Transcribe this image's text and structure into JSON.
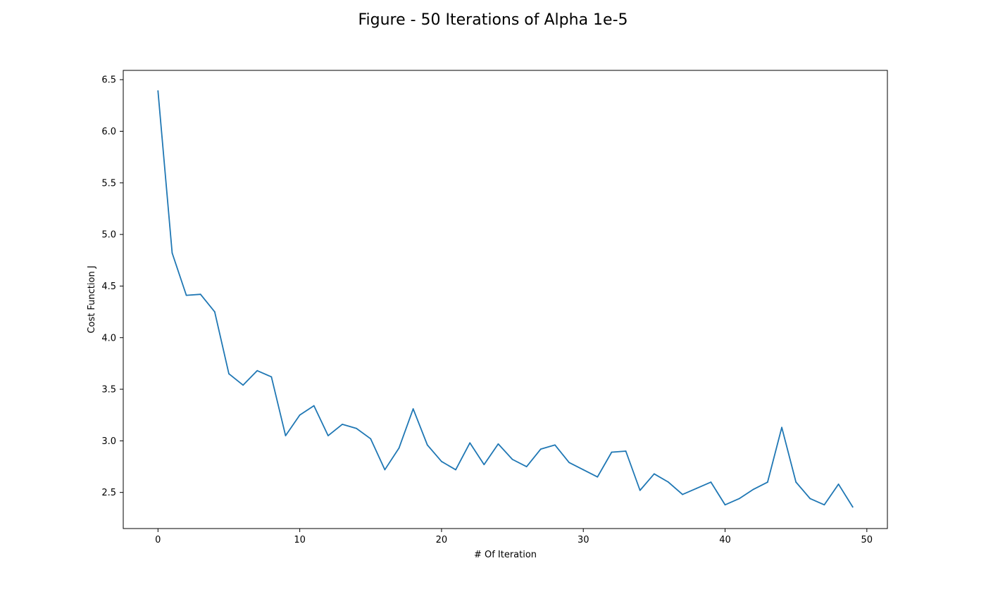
{
  "chart_data": {
    "type": "line",
    "title": "Figure - 50 Iterations of Alpha 1e-5",
    "xlabel": "# Of Iteration",
    "ylabel": "Cost Function J",
    "xlim": [
      -2.45,
      51.45
    ],
    "ylim": [
      2.15,
      6.59
    ],
    "xticks": [
      0,
      10,
      20,
      30,
      40,
      50
    ],
    "yticks": [
      2.5,
      3.0,
      3.5,
      4.0,
      4.5,
      5.0,
      5.5,
      6.0,
      6.5
    ],
    "xtick_labels": [
      "0",
      "10",
      "20",
      "30",
      "40",
      "50"
    ],
    "ytick_labels": [
      "2.5",
      "3.0",
      "3.5",
      "4.0",
      "4.5",
      "5.0",
      "5.5",
      "6.0",
      "6.5"
    ],
    "grid": false,
    "series": [
      {
        "color": "#1f77b4",
        "x": [
          0,
          1,
          2,
          3,
          4,
          5,
          6,
          7,
          8,
          9,
          10,
          11,
          12,
          13,
          14,
          15,
          16,
          17,
          18,
          19,
          20,
          21,
          22,
          23,
          24,
          25,
          26,
          27,
          28,
          29,
          30,
          31,
          32,
          33,
          34,
          35,
          36,
          37,
          38,
          39,
          40,
          41,
          42,
          43,
          44,
          45,
          46,
          47,
          48,
          49
        ],
        "values": [
          6.39,
          4.82,
          4.41,
          4.42,
          4.25,
          3.65,
          3.54,
          3.68,
          3.62,
          3.05,
          3.25,
          3.34,
          3.05,
          3.16,
          3.12,
          3.02,
          2.72,
          2.93,
          3.31,
          2.96,
          2.8,
          2.72,
          2.98,
          2.77,
          2.97,
          2.82,
          2.75,
          2.92,
          2.96,
          2.79,
          2.72,
          2.65,
          2.89,
          2.9,
          2.52,
          2.68,
          2.6,
          2.48,
          2.54,
          2.6,
          2.38,
          2.44,
          2.53,
          2.6,
          3.13,
          2.6,
          2.44,
          2.38,
          2.58,
          2.36
        ]
      }
    ]
  }
}
